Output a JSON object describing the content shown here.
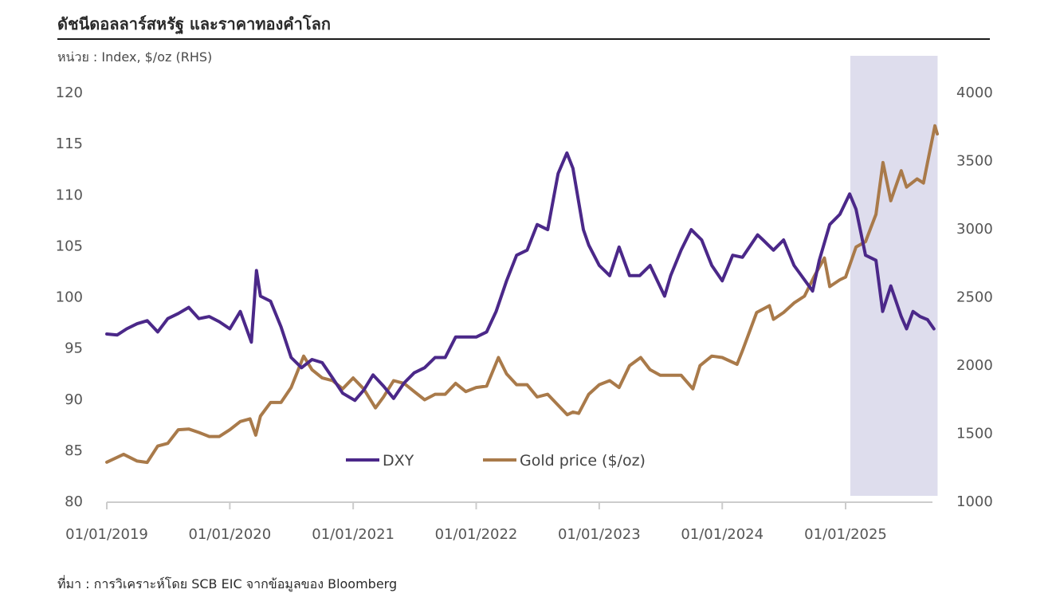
{
  "header": {
    "title": "ดัชนีดอลลาร์สหรัฐ และราคาทองคำโลก",
    "unit": "หน่วย : Index, $/oz (RHS)"
  },
  "footer": {
    "source": "ที่มา : การวิเคราะห์โดย SCB EIC จากข้อมูลของ Bloomberg"
  },
  "colors": {
    "dxy": "#4b2889",
    "gold": "#a97a4a",
    "highlight": "#dedded",
    "axis": "#cccccc"
  },
  "chart_data": {
    "type": "line",
    "x_ticks": [
      "01/01/2019",
      "01/01/2020",
      "01/01/2021",
      "01/01/2022",
      "01/01/2023",
      "01/01/2024",
      "01/01/2025"
    ],
    "y_left": {
      "ylim": [
        80,
        120
      ],
      "ticks": [
        "80",
        "85",
        "90",
        "95",
        "100",
        "105",
        "110",
        "115",
        "120"
      ]
    },
    "y_right": {
      "ylim": [
        1000,
        4000
      ],
      "ticks": [
        "1000",
        "1500",
        "2000",
        "2500",
        "3000",
        "3500",
        "4000"
      ]
    },
    "highlight_range": {
      "start": "2025-01-15",
      "end": "2025-10-01"
    },
    "legend_position": "bottom-center",
    "grid": false,
    "series": [
      {
        "name": "DXY",
        "axis": "left",
        "points": [
          [
            "2019-01-01",
            96.3
          ],
          [
            "2019-02-01",
            96.2
          ],
          [
            "2019-03-01",
            96.8
          ],
          [
            "2019-04-01",
            97.3
          ],
          [
            "2019-05-01",
            97.6
          ],
          [
            "2019-06-01",
            96.5
          ],
          [
            "2019-07-01",
            97.8
          ],
          [
            "2019-08-01",
            98.3
          ],
          [
            "2019-09-01",
            98.9
          ],
          [
            "2019-10-01",
            97.8
          ],
          [
            "2019-11-01",
            98.0
          ],
          [
            "2019-12-01",
            97.5
          ],
          [
            "2020-01-01",
            96.8
          ],
          [
            "2020-02-01",
            98.5
          ],
          [
            "2020-03-05",
            95.5
          ],
          [
            "2020-03-20",
            102.5
          ],
          [
            "2020-04-01",
            100.0
          ],
          [
            "2020-05-01",
            99.5
          ],
          [
            "2020-06-01",
            97.0
          ],
          [
            "2020-07-01",
            94.0
          ],
          [
            "2020-08-01",
            93.0
          ],
          [
            "2020-09-01",
            93.8
          ],
          [
            "2020-10-01",
            93.5
          ],
          [
            "2020-11-01",
            92.0
          ],
          [
            "2020-12-01",
            90.5
          ],
          [
            "2021-01-06",
            89.8
          ],
          [
            "2021-02-01",
            90.8
          ],
          [
            "2021-03-01",
            92.3
          ],
          [
            "2021-04-01",
            91.2
          ],
          [
            "2021-05-01",
            90.0
          ],
          [
            "2021-06-01",
            91.5
          ],
          [
            "2021-07-01",
            92.5
          ],
          [
            "2021-08-01",
            93.0
          ],
          [
            "2021-09-01",
            94.0
          ],
          [
            "2021-10-01",
            94.0
          ],
          [
            "2021-11-01",
            96.0
          ],
          [
            "2021-12-01",
            96.0
          ],
          [
            "2022-01-01",
            96.0
          ],
          [
            "2022-02-01",
            96.5
          ],
          [
            "2022-03-01",
            98.5
          ],
          [
            "2022-04-01",
            101.5
          ],
          [
            "2022-05-01",
            104.0
          ],
          [
            "2022-06-01",
            104.5
          ],
          [
            "2022-07-01",
            107.0
          ],
          [
            "2022-08-01",
            106.5
          ],
          [
            "2022-09-01",
            112.0
          ],
          [
            "2022-09-27",
            114.0
          ],
          [
            "2022-10-15",
            112.5
          ],
          [
            "2022-11-15",
            106.5
          ],
          [
            "2022-12-01",
            105.0
          ],
          [
            "2023-01-01",
            103.0
          ],
          [
            "2023-02-01",
            102.0
          ],
          [
            "2023-03-01",
            104.8
          ],
          [
            "2023-04-01",
            102.0
          ],
          [
            "2023-05-01",
            102.0
          ],
          [
            "2023-06-01",
            103.0
          ],
          [
            "2023-07-14",
            100.0
          ],
          [
            "2023-08-01",
            102.0
          ],
          [
            "2023-09-01",
            104.5
          ],
          [
            "2023-10-01",
            106.5
          ],
          [
            "2023-11-01",
            105.5
          ],
          [
            "2023-12-01",
            103.0
          ],
          [
            "2024-01-01",
            101.5
          ],
          [
            "2024-02-01",
            104.0
          ],
          [
            "2024-03-01",
            103.8
          ],
          [
            "2024-04-15",
            106.0
          ],
          [
            "2024-05-01",
            105.5
          ],
          [
            "2024-06-01",
            104.5
          ],
          [
            "2024-07-01",
            105.5
          ],
          [
            "2024-08-01",
            103.0
          ],
          [
            "2024-09-25",
            100.5
          ],
          [
            "2024-10-15",
            103.5
          ],
          [
            "2024-11-15",
            107.0
          ],
          [
            "2024-12-15",
            108.0
          ],
          [
            "2025-01-13",
            110.0
          ],
          [
            "2025-02-01",
            108.5
          ],
          [
            "2025-03-01",
            104.0
          ],
          [
            "2025-04-01",
            103.5
          ],
          [
            "2025-04-21",
            98.5
          ],
          [
            "2025-05-15",
            101.0
          ],
          [
            "2025-06-15",
            98.0
          ],
          [
            "2025-07-01",
            96.8
          ],
          [
            "2025-07-20",
            98.5
          ],
          [
            "2025-08-10",
            98.0
          ],
          [
            "2025-09-01",
            97.7
          ],
          [
            "2025-09-20",
            96.8
          ]
        ]
      },
      {
        "name": "Gold price ($/oz)",
        "axis": "right",
        "points": [
          [
            "2019-01-01",
            1282
          ],
          [
            "2019-02-20",
            1340
          ],
          [
            "2019-04-01",
            1290
          ],
          [
            "2019-05-01",
            1280
          ],
          [
            "2019-06-01",
            1400
          ],
          [
            "2019-07-01",
            1420
          ],
          [
            "2019-08-01",
            1520
          ],
          [
            "2019-09-01",
            1525
          ],
          [
            "2019-10-01",
            1500
          ],
          [
            "2019-11-01",
            1470
          ],
          [
            "2019-12-01",
            1470
          ],
          [
            "2020-01-01",
            1520
          ],
          [
            "2020-02-01",
            1580
          ],
          [
            "2020-03-01",
            1600
          ],
          [
            "2020-03-18",
            1480
          ],
          [
            "2020-04-01",
            1620
          ],
          [
            "2020-05-01",
            1720
          ],
          [
            "2020-06-01",
            1720
          ],
          [
            "2020-07-01",
            1830
          ],
          [
            "2020-08-07",
            2060
          ],
          [
            "2020-09-01",
            1960
          ],
          [
            "2020-10-01",
            1900
          ],
          [
            "2020-11-01",
            1880
          ],
          [
            "2020-12-01",
            1820
          ],
          [
            "2021-01-01",
            1900
          ],
          [
            "2021-02-01",
            1820
          ],
          [
            "2021-03-08",
            1680
          ],
          [
            "2021-04-01",
            1760
          ],
          [
            "2021-05-01",
            1880
          ],
          [
            "2021-06-01",
            1860
          ],
          [
            "2021-07-01",
            1800
          ],
          [
            "2021-08-01",
            1740
          ],
          [
            "2021-09-01",
            1780
          ],
          [
            "2021-10-01",
            1780
          ],
          [
            "2021-11-01",
            1860
          ],
          [
            "2021-12-01",
            1800
          ],
          [
            "2022-01-01",
            1830
          ],
          [
            "2022-02-01",
            1840
          ],
          [
            "2022-03-08",
            2050
          ],
          [
            "2022-04-01",
            1930
          ],
          [
            "2022-05-01",
            1850
          ],
          [
            "2022-06-01",
            1850
          ],
          [
            "2022-07-01",
            1760
          ],
          [
            "2022-08-01",
            1780
          ],
          [
            "2022-09-28",
            1630
          ],
          [
            "2022-10-15",
            1650
          ],
          [
            "2022-11-01",
            1640
          ],
          [
            "2022-12-01",
            1780
          ],
          [
            "2023-01-01",
            1850
          ],
          [
            "2023-02-01",
            1880
          ],
          [
            "2023-03-01",
            1830
          ],
          [
            "2023-04-01",
            1990
          ],
          [
            "2023-05-04",
            2050
          ],
          [
            "2023-06-01",
            1960
          ],
          [
            "2023-07-01",
            1920
          ],
          [
            "2023-08-01",
            1920
          ],
          [
            "2023-09-01",
            1920
          ],
          [
            "2023-10-06",
            1820
          ],
          [
            "2023-10-27",
            1990
          ],
          [
            "2023-12-01",
            2060
          ],
          [
            "2024-01-01",
            2050
          ],
          [
            "2024-02-14",
            2000
          ],
          [
            "2024-03-01",
            2100
          ],
          [
            "2024-04-12",
            2380
          ],
          [
            "2024-05-20",
            2430
          ],
          [
            "2024-06-01",
            2330
          ],
          [
            "2024-07-01",
            2380
          ],
          [
            "2024-08-01",
            2450
          ],
          [
            "2024-09-01",
            2500
          ],
          [
            "2024-10-01",
            2650
          ],
          [
            "2024-10-30",
            2780
          ],
          [
            "2024-11-15",
            2570
          ],
          [
            "2024-12-15",
            2620
          ],
          [
            "2025-01-01",
            2640
          ],
          [
            "2025-02-01",
            2860
          ],
          [
            "2025-03-01",
            2900
          ],
          [
            "2025-04-01",
            3100
          ],
          [
            "2025-04-22",
            3480
          ],
          [
            "2025-05-15",
            3200
          ],
          [
            "2025-06-15",
            3420
          ],
          [
            "2025-07-01",
            3300
          ],
          [
            "2025-08-01",
            3360
          ],
          [
            "2025-08-20",
            3330
          ],
          [
            "2025-09-01",
            3480
          ],
          [
            "2025-09-23",
            3750
          ],
          [
            "2025-09-30",
            3690
          ]
        ]
      }
    ]
  }
}
